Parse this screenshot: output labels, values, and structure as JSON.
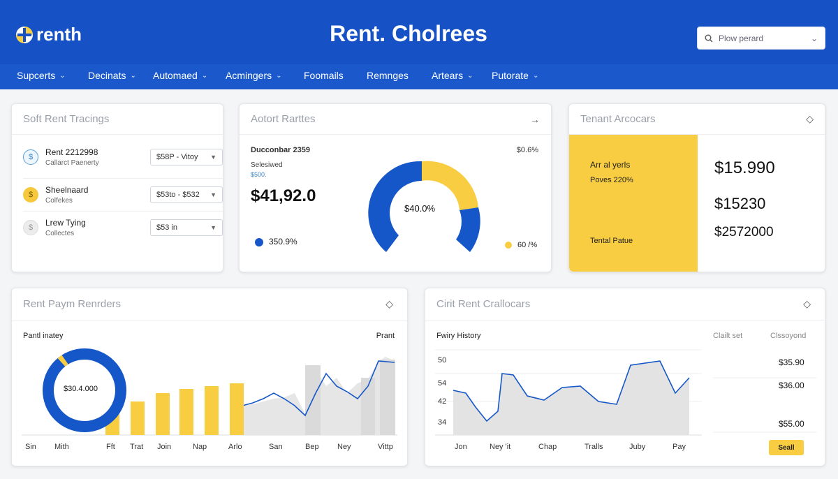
{
  "header": {
    "logo_text": "renth",
    "title": "Rent. Cholrees",
    "search_placeholder": "Plow perard"
  },
  "nav": {
    "items": [
      {
        "label": "Supcerts",
        "caret": true
      },
      {
        "label": "Decinats",
        "caret": true
      },
      {
        "label": "Automaed",
        "caret": true
      },
      {
        "label": "Acmingers",
        "caret": true
      },
      {
        "label": "Foomails",
        "caret": false
      },
      {
        "label": "Remnges",
        "caret": false
      },
      {
        "label": "Artears",
        "caret": true
      },
      {
        "label": "Putorate",
        "caret": true
      }
    ]
  },
  "card1": {
    "title": "Soft Rent Tracings",
    "rows": [
      {
        "title": "Rent 2212998",
        "sub": "Callarct Paenerty",
        "select": "$58P - Vitoy",
        "icon_color": "#e8f1fb"
      },
      {
        "title": "Sheelnaard",
        "sub": "Colfekes",
        "select": "$53to - $532",
        "icon_color": "#f6c83b"
      },
      {
        "title": "Lrew Tying",
        "sub": "Collectes",
        "select": "$53 in",
        "icon_color": "#ececec"
      }
    ]
  },
  "card2": {
    "title": "Aotort Rarttes",
    "date": "Ducconbar 2359",
    "pct_top": "$0.6%",
    "sel_label": "Selesiwed",
    "sel_sub": "$500.",
    "amount": "$41,92.0",
    "gauge_center": "$40.0%",
    "legend_left": "350.9%",
    "legend_right": "60 /%",
    "colors": {
      "blue": "#1557c8",
      "yellow": "#f8cd41"
    }
  },
  "card3": {
    "title": "Tenant Arcocars",
    "panel_line1": "Arr al yerls",
    "panel_line2": "Poves 220%",
    "panel_footer": "Tental Patue",
    "amounts": [
      "$15.990",
      "$15230",
      "$2572000"
    ]
  },
  "card4": {
    "title": "Rent Paym Renrders",
    "left_label": "Pantl inatey",
    "right_label": "Prant",
    "donut_center": "$30.4.000",
    "x_labels": [
      "Sin",
      "Mith",
      "Fft",
      "Trat",
      "Join",
      "Nap",
      "Arlo",
      "San",
      "Bep",
      "Ney",
      "Vittp"
    ]
  },
  "card5": {
    "title": "Cirit Rent Crallocars",
    "chart_title": "Fwiry History",
    "col1_header": "Clailt set",
    "col2_header": "Clssoyond",
    "y_labels": [
      "50",
      "54",
      "42",
      "34"
    ],
    "x_labels": [
      "Jon",
      "Ney 'it",
      "Chap",
      "Tralls",
      "Juby",
      "Pay"
    ],
    "right_values": [
      "$35.90",
      "$36.00",
      "$55.00"
    ],
    "button_label": "Seall"
  }
}
